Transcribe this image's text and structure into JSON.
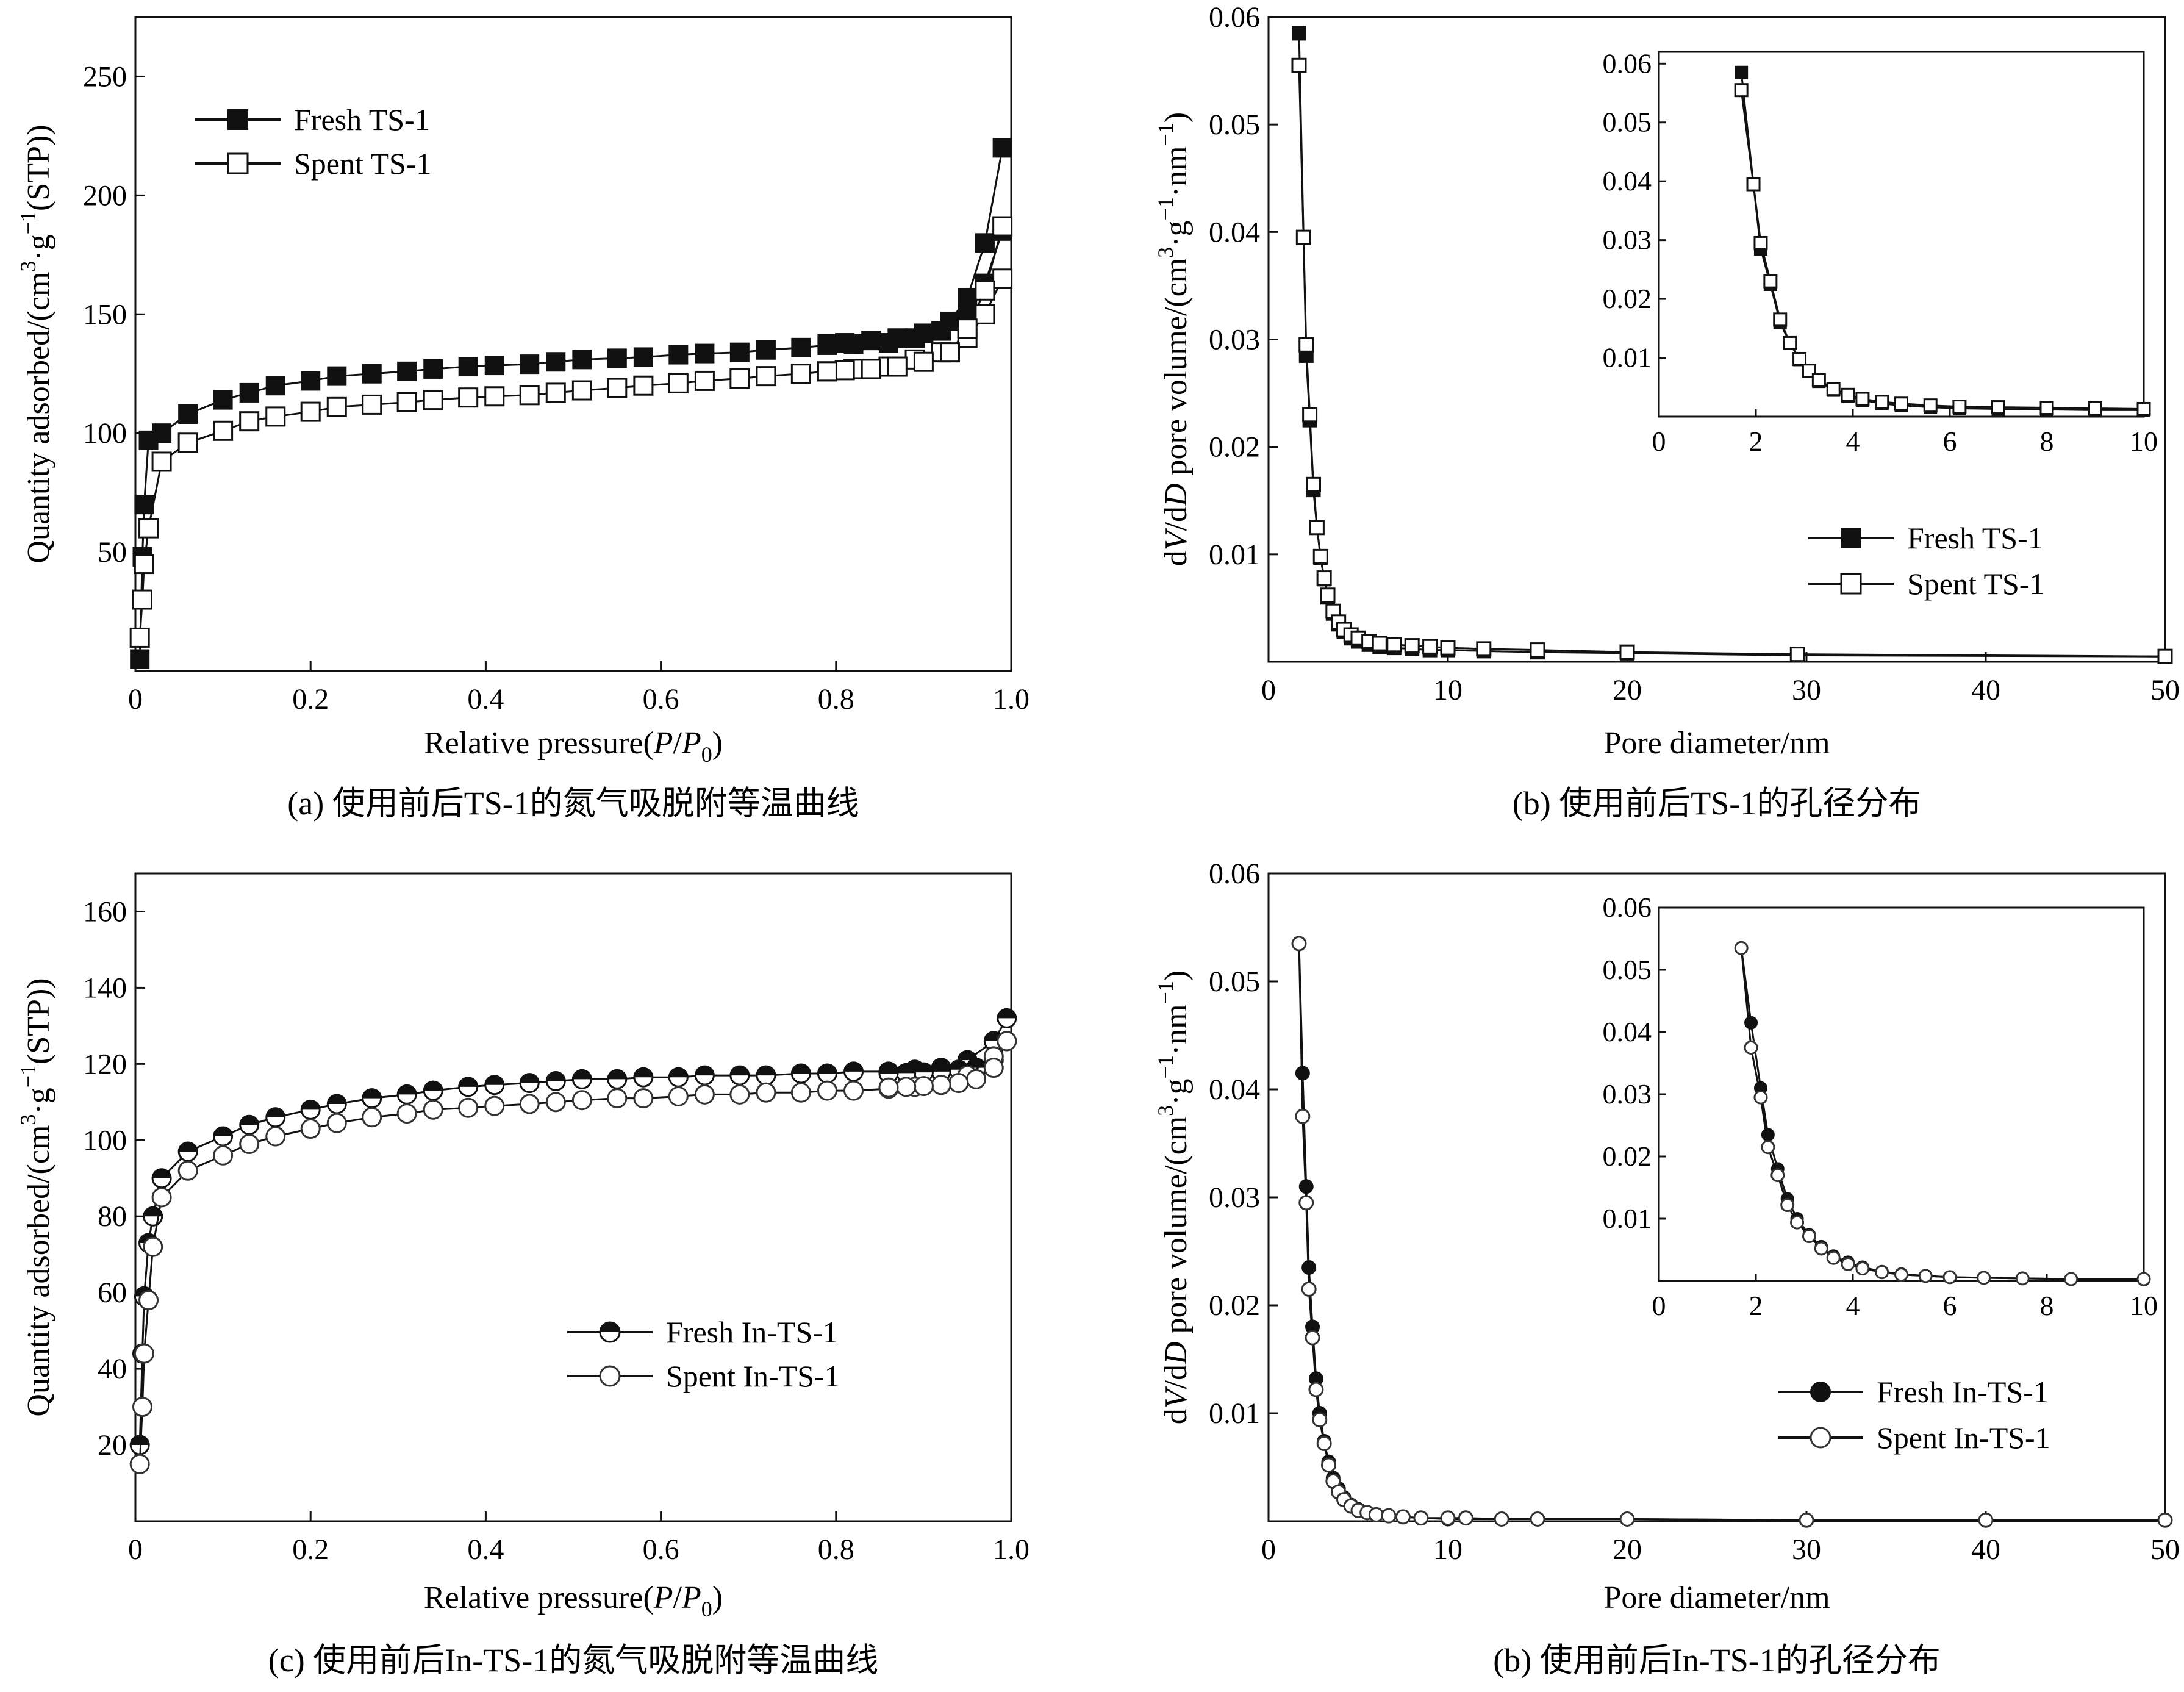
{
  "chart_data": [
    {
      "id": "a",
      "type": "line",
      "caption": "(a) 使用前后TS-1的氮气吸脱附等温曲线",
      "xlabel": "Relative pressure(P/P0)",
      "ylabel": "Quantity adsorbed/(cm3·g−1(STP))",
      "xlim": [
        0,
        1.0
      ],
      "ylim": [
        0,
        275
      ],
      "xticks": [
        0,
        0.2,
        0.4,
        0.6,
        0.8,
        1.0
      ],
      "xtick_labels": [
        "0",
        "0.2",
        "0.4",
        "0.6",
        "0.8",
        "1.0"
      ],
      "yticks": [
        50,
        100,
        150,
        200,
        250
      ],
      "ytick_labels": [
        "50",
        "100",
        "150",
        "200",
        "250"
      ],
      "legend": [
        "Fresh TS-1",
        "Spent TS-1"
      ],
      "series": [
        {
          "name": "Fresh TS-1",
          "marker": "square-filled",
          "adsorption": {
            "x": [
              0.005,
              0.008,
              0.01,
              0.015,
              0.03,
              0.06,
              0.1,
              0.13,
              0.16,
              0.2,
              0.23,
              0.27,
              0.31,
              0.34,
              0.38,
              0.41,
              0.45,
              0.48,
              0.51,
              0.55,
              0.58,
              0.62,
              0.65,
              0.69,
              0.72,
              0.76,
              0.79,
              0.82,
              0.86,
              0.89,
              0.92,
              0.95,
              0.97,
              0.99
            ],
            "y": [
              5,
              48,
              70,
              97,
              100,
              108,
              114,
              117,
              120,
              122,
              124,
              125,
              126,
              127,
              128,
              128.5,
              129,
              130,
              131,
              131.5,
              132,
              133,
              133.5,
              134,
              135,
              136,
              137,
              137.5,
              138,
              140,
              143,
              150,
              163,
              185
            ]
          },
          "desorption": {
            "x": [
              0.99,
              0.97,
              0.95,
              0.93,
              0.9,
              0.87,
              0.84,
              0.81,
              0.79
            ],
            "y": [
              220,
              180,
              157,
              147,
              142,
              140,
              139,
              138,
              137.5
            ]
          }
        },
        {
          "name": "Spent TS-1",
          "marker": "square-open",
          "adsorption": {
            "x": [
              0.005,
              0.008,
              0.01,
              0.015,
              0.03,
              0.06,
              0.1,
              0.13,
              0.16,
              0.2,
              0.23,
              0.27,
              0.31,
              0.34,
              0.38,
              0.41,
              0.45,
              0.48,
              0.51,
              0.55,
              0.58,
              0.62,
              0.65,
              0.69,
              0.72,
              0.76,
              0.79,
              0.82,
              0.86,
              0.89,
              0.92,
              0.95,
              0.97,
              0.99
            ],
            "y": [
              14,
              30,
              45,
              60,
              88,
              96,
              101,
              105,
              107,
              109,
              111,
              112,
              113,
              114,
              115,
              115.5,
              116,
              117,
              118,
              119,
              120,
              121,
              122,
              123,
              124,
              125,
              126,
              127,
              128,
              131,
              134,
              140,
              150,
              165
            ]
          },
          "desorption": {
            "x": [
              0.99,
              0.97,
              0.95,
              0.93,
              0.9,
              0.87,
              0.84,
              0.81,
              0.79
            ],
            "y": [
              187,
              160,
              144,
              134,
              130,
              128,
              127,
              126.5,
              126
            ]
          }
        }
      ]
    },
    {
      "id": "b1",
      "type": "line",
      "caption": "(b) 使用前后TS-1的孔径分布",
      "xlabel": "Pore diameter/nm",
      "ylabel": "dV/dD pore volume/(cm3·g−1·nm−1)",
      "xlim": [
        0,
        50
      ],
      "ylim": [
        0,
        0.06
      ],
      "xticks": [
        0,
        10,
        20,
        30,
        40,
        50
      ],
      "xtick_labels": [
        "0",
        "10",
        "20",
        "30",
        "40",
        "50"
      ],
      "yticks": [
        0.01,
        0.02,
        0.03,
        0.04,
        0.05,
        0.06
      ],
      "ytick_labels": [
        "0.01",
        "0.02",
        "0.03",
        "0.04",
        "0.05",
        "0.06"
      ],
      "legend": [
        "Fresh TS-1",
        "Spent TS-1"
      ],
      "inset": {
        "xlim": [
          0,
          10
        ],
        "ylim": [
          0,
          0.062
        ],
        "xticks": [
          0,
          2,
          4,
          6,
          8,
          10
        ],
        "xtick_labels": [
          "0",
          "2",
          "4",
          "6",
          "8",
          "10"
        ],
        "yticks": [
          0.01,
          0.02,
          0.03,
          0.04,
          0.05,
          0.06
        ],
        "ytick_labels": [
          "0.01",
          "0.02",
          "0.03",
          "0.04",
          "0.05",
          "0.06"
        ]
      },
      "series": [
        {
          "name": "Fresh TS-1",
          "marker": "square-filled",
          "x": [
            1.7,
            1.95,
            2.1,
            2.3,
            2.5,
            2.7,
            2.9,
            3.1,
            3.3,
            3.6,
            3.9,
            4.2,
            4.6,
            5.0,
            5.6,
            6.2,
            7.0,
            8.0,
            9.0,
            10.0,
            12.0,
            15.0,
            20.0,
            29.5,
            50.0
          ],
          "y": [
            0.0585,
            0.0395,
            0.0285,
            0.0225,
            0.016,
            0.0125,
            0.0097,
            0.0077,
            0.006,
            0.0045,
            0.0035,
            0.0028,
            0.0022,
            0.0019,
            0.0016,
            0.0014,
            0.0013,
            0.0012,
            0.0011,
            0.0011,
            0.001,
            0.0009,
            0.0008,
            0.0006,
            0.0005
          ]
        },
        {
          "name": "Spent TS-1",
          "marker": "square-open",
          "x": [
            1.7,
            1.95,
            2.1,
            2.3,
            2.5,
            2.7,
            2.9,
            3.1,
            3.3,
            3.6,
            3.9,
            4.2,
            4.6,
            5.0,
            5.6,
            6.2,
            7.0,
            8.0,
            9.0,
            10.0,
            12.0,
            15.0,
            20.0,
            29.5,
            50.0
          ],
          "y": [
            0.0555,
            0.0395,
            0.0295,
            0.023,
            0.0165,
            0.0125,
            0.0098,
            0.0078,
            0.0062,
            0.0047,
            0.0037,
            0.003,
            0.0025,
            0.0022,
            0.0019,
            0.0017,
            0.0016,
            0.0015,
            0.0014,
            0.0013,
            0.0012,
            0.0011,
            0.0009,
            0.0007,
            0.0005
          ]
        }
      ]
    },
    {
      "id": "c",
      "type": "line",
      "caption": "(c) 使用前后In-TS-1的氮气吸脱附等温曲线",
      "xlabel": "Relative pressure(P/P0)",
      "ylabel": "Quantity adsorbed/(cm3·g−1(STP))",
      "xlim": [
        0,
        1.0
      ],
      "ylim": [
        0,
        170
      ],
      "xticks": [
        0,
        0.2,
        0.4,
        0.6,
        0.8,
        1.0
      ],
      "xtick_labels": [
        "0",
        "0.2",
        "0.4",
        "0.6",
        "0.8",
        "1.0"
      ],
      "yticks": [
        20,
        40,
        60,
        80,
        100,
        120,
        140,
        160
      ],
      "ytick_labels": [
        "20",
        "40",
        "60",
        "80",
        "100",
        "120",
        "140",
        "160"
      ],
      "legend": [
        "Fresh In-TS-1",
        "Spent In-TS-1"
      ],
      "series": [
        {
          "name": "Fresh In-TS-1",
          "marker": "circle-half",
          "adsorption": {
            "x": [
              0.005,
              0.008,
              0.01,
              0.015,
              0.02,
              0.03,
              0.06,
              0.1,
              0.13,
              0.16,
              0.2,
              0.23,
              0.27,
              0.31,
              0.34,
              0.38,
              0.41,
              0.45,
              0.48,
              0.51,
              0.55,
              0.58,
              0.62,
              0.65,
              0.69,
              0.72,
              0.76,
              0.79,
              0.82,
              0.86,
              0.89,
              0.92,
              0.95,
              0.98,
              0.995
            ],
            "y": [
              20,
              44,
              59,
              73,
              80,
              90,
              97,
              101,
              104,
              106,
              108,
              109.5,
              111,
              112,
              113,
              114,
              114.5,
              115,
              115.5,
              116,
              116,
              116.5,
              116.5,
              117,
              117,
              117,
              117.5,
              117.5,
              118,
              118,
              118.5,
              119,
              121,
              126,
              132
            ]
          },
          "desorption": {
            "x": [
              0.995,
              0.98,
              0.96,
              0.94,
              0.92,
              0.9,
              0.88,
              0.86
            ],
            "y": [
              126,
              121,
              119,
              118.5,
              118,
              117.8,
              117.6,
              117.5
            ]
          }
        },
        {
          "name": "Spent In-TS-1",
          "marker": "circle-open",
          "adsorption": {
            "x": [
              0.005,
              0.008,
              0.01,
              0.015,
              0.02,
              0.03,
              0.06,
              0.1,
              0.13,
              0.16,
              0.2,
              0.23,
              0.27,
              0.31,
              0.34,
              0.38,
              0.41,
              0.45,
              0.48,
              0.51,
              0.55,
              0.58,
              0.62,
              0.65,
              0.69,
              0.72,
              0.76,
              0.79,
              0.82,
              0.86,
              0.89,
              0.92,
              0.95,
              0.98,
              0.995
            ],
            "y": [
              15,
              30,
              44,
              58,
              72,
              85,
              92,
              96,
              99,
              101,
              103,
              104.5,
              106,
              107,
              108,
              108.5,
              109,
              109.5,
              110,
              110.5,
              111,
              111,
              111.5,
              112,
              112,
              112.5,
              112.5,
              113,
              113,
              113.5,
              114,
              114.5,
              117,
              122,
              126
            ]
          },
          "desorption": {
            "x": [
              0.995,
              0.98,
              0.96,
              0.94,
              0.92,
              0.9,
              0.88,
              0.86
            ],
            "y": [
              126,
              119,
              116,
              115,
              114.5,
              114.2,
              114,
              113.8
            ]
          }
        }
      ]
    },
    {
      "id": "b2",
      "type": "line",
      "caption": "(b) 使用前后In-TS-1的孔径分布",
      "xlabel": "Pore diameter/nm",
      "ylabel": "dV/dD pore volume/(cm3·g−1·nm−1)",
      "xlim": [
        0,
        50
      ],
      "ylim": [
        0,
        0.06
      ],
      "xticks": [
        0,
        10,
        20,
        30,
        40,
        50
      ],
      "xtick_labels": [
        "0",
        "10",
        "20",
        "30",
        "40",
        "50"
      ],
      "yticks": [
        0.01,
        0.02,
        0.03,
        0.04,
        0.05,
        0.06
      ],
      "ytick_labels": [
        "0.01",
        "0.02",
        "0.03",
        "0.04",
        "0.05",
        "0.06"
      ],
      "legend": [
        "Fresh In-TS-1",
        "Spent In-TS-1"
      ],
      "inset": {
        "xlim": [
          0,
          10
        ],
        "ylim": [
          0,
          0.06
        ],
        "xticks": [
          0,
          2,
          4,
          6,
          8,
          10
        ],
        "xtick_labels": [
          "0",
          "2",
          "4",
          "6",
          "8",
          "10"
        ],
        "yticks": [
          0.01,
          0.02,
          0.03,
          0.04,
          0.05,
          0.06
        ],
        "ytick_labels": [
          "0.01",
          "0.02",
          "0.03",
          "0.04",
          "0.05",
          "0.06"
        ]
      },
      "series": [
        {
          "name": "Fresh In-TS-1",
          "marker": "circle-filled",
          "x": [
            1.7,
            1.9,
            2.1,
            2.25,
            2.45,
            2.65,
            2.85,
            3.1,
            3.35,
            3.6,
            3.9,
            4.2,
            4.6,
            5.0,
            5.5,
            6.0,
            6.7,
            7.5,
            8.5,
            10.0,
            13.0,
            20.0,
            30.0,
            40.0,
            50.0
          ],
          "y": [
            0.0535,
            0.0415,
            0.031,
            0.0235,
            0.018,
            0.0132,
            0.01,
            0.0074,
            0.0055,
            0.004,
            0.003,
            0.0022,
            0.0015,
            0.0011,
            0.0008,
            0.0006,
            0.0005,
            0.0004,
            0.0003,
            0.0002,
            0.0002,
            0.0002,
            0.0001,
            0.0001,
            0.0001
          ]
        },
        {
          "name": "Spent In-TS-1",
          "marker": "circle-open",
          "x": [
            1.7,
            1.9,
            2.1,
            2.25,
            2.45,
            2.65,
            2.85,
            3.1,
            3.35,
            3.6,
            3.9,
            4.2,
            4.6,
            5.0,
            5.5,
            6.0,
            6.7,
            7.5,
            8.5,
            10.0,
            11.0,
            13.0,
            15.0,
            20.0,
            30.0,
            40.0,
            50.0
          ],
          "y": [
            0.0535,
            0.0375,
            0.0295,
            0.0215,
            0.017,
            0.0122,
            0.0094,
            0.0072,
            0.0052,
            0.0037,
            0.0027,
            0.002,
            0.0014,
            0.001,
            0.0008,
            0.0006,
            0.0005,
            0.0004,
            0.0003,
            0.0003,
            0.0003,
            0.0002,
            0.0002,
            0.0002,
            0.0001,
            0.0001,
            0.0001
          ]
        }
      ]
    }
  ]
}
